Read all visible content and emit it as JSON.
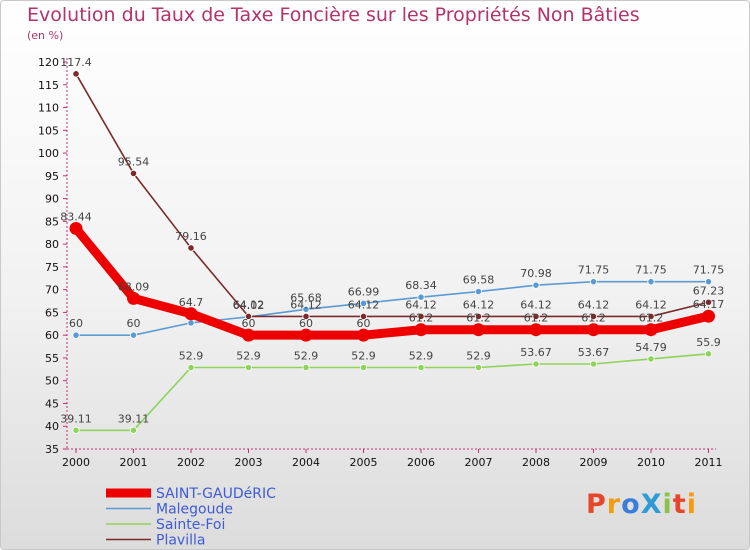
{
  "title": "Evolution du Taux de Taxe Foncière sur les Propriétés Non Bâties",
  "unit_label": "(en %)",
  "chart_data": {
    "type": "line",
    "title": "Evolution du Taux de Taxe Foncière sur les Propriétés Non Bâties",
    "ylabel": "(en %)",
    "xlabel": "",
    "x": [
      "2000",
      "2001",
      "2002",
      "2003",
      "2004",
      "2005",
      "2006",
      "2007",
      "2008",
      "2009",
      "2010",
      "2011"
    ],
    "ylim": [
      35,
      120
    ],
    "yticks": [
      35,
      40,
      45,
      50,
      55,
      60,
      65,
      70,
      75,
      80,
      85,
      90,
      95,
      100,
      105,
      110,
      115,
      120
    ],
    "series": [
      {
        "name": "SAINT-GAUDéRIC",
        "color": "#ee0000",
        "emphasis": true,
        "values": [
          83.44,
          68.09,
          64.7,
          60,
          60,
          60,
          61.2,
          61.2,
          61.2,
          61.2,
          61.2,
          64.17
        ],
        "labels": [
          "83.44",
          "68.09",
          "64.7",
          "60",
          "60",
          "60",
          "61.2",
          "61.2",
          "61.2",
          "61.2",
          "61.2",
          "64.17"
        ]
      },
      {
        "name": "Malegoude",
        "color": "#5b9bd5",
        "values": [
          60,
          60,
          62.7,
          64.02,
          65.68,
          66.99,
          68.34,
          69.58,
          70.98,
          71.75,
          71.75,
          71.75
        ],
        "labels": [
          "60",
          "60",
          "",
          "64.02",
          "65.68",
          "66.99",
          "68.34",
          "69.58",
          "70.98",
          "71.75",
          "71.75",
          "71.75"
        ]
      },
      {
        "name": "Sainte-Foi",
        "color": "#8ed45a",
        "values": [
          39.11,
          39.11,
          52.9,
          52.9,
          52.9,
          52.9,
          52.9,
          52.9,
          53.67,
          53.67,
          54.79,
          55.9
        ],
        "labels": [
          "39.11",
          "39.11",
          "52.9",
          "52.9",
          "52.9",
          "52.9",
          "52.9",
          "52.9",
          "53.67",
          "53.67",
          "54.79",
          "55.9"
        ]
      },
      {
        "name": "Plavilla",
        "color": "#7a2a2a",
        "values": [
          117.4,
          95.54,
          79.16,
          64.12,
          64.12,
          64.12,
          64.12,
          64.12,
          64.12,
          64.12,
          64.12,
          67.23
        ],
        "labels": [
          "117.4",
          "95.54",
          "79.16",
          "64.12",
          "64.12",
          "64.12",
          "64.12",
          "64.12",
          "64.12",
          "64.12",
          "64.12",
          "67.23"
        ]
      }
    ],
    "legend_position": "bottom-left"
  },
  "logo": {
    "text": "ProXiti",
    "colors": [
      "#e8462b",
      "#f39c12",
      "#3b7dd8",
      "#2e9bd6",
      "#8bc34a",
      "#e8462b",
      "#f39c12"
    ]
  }
}
